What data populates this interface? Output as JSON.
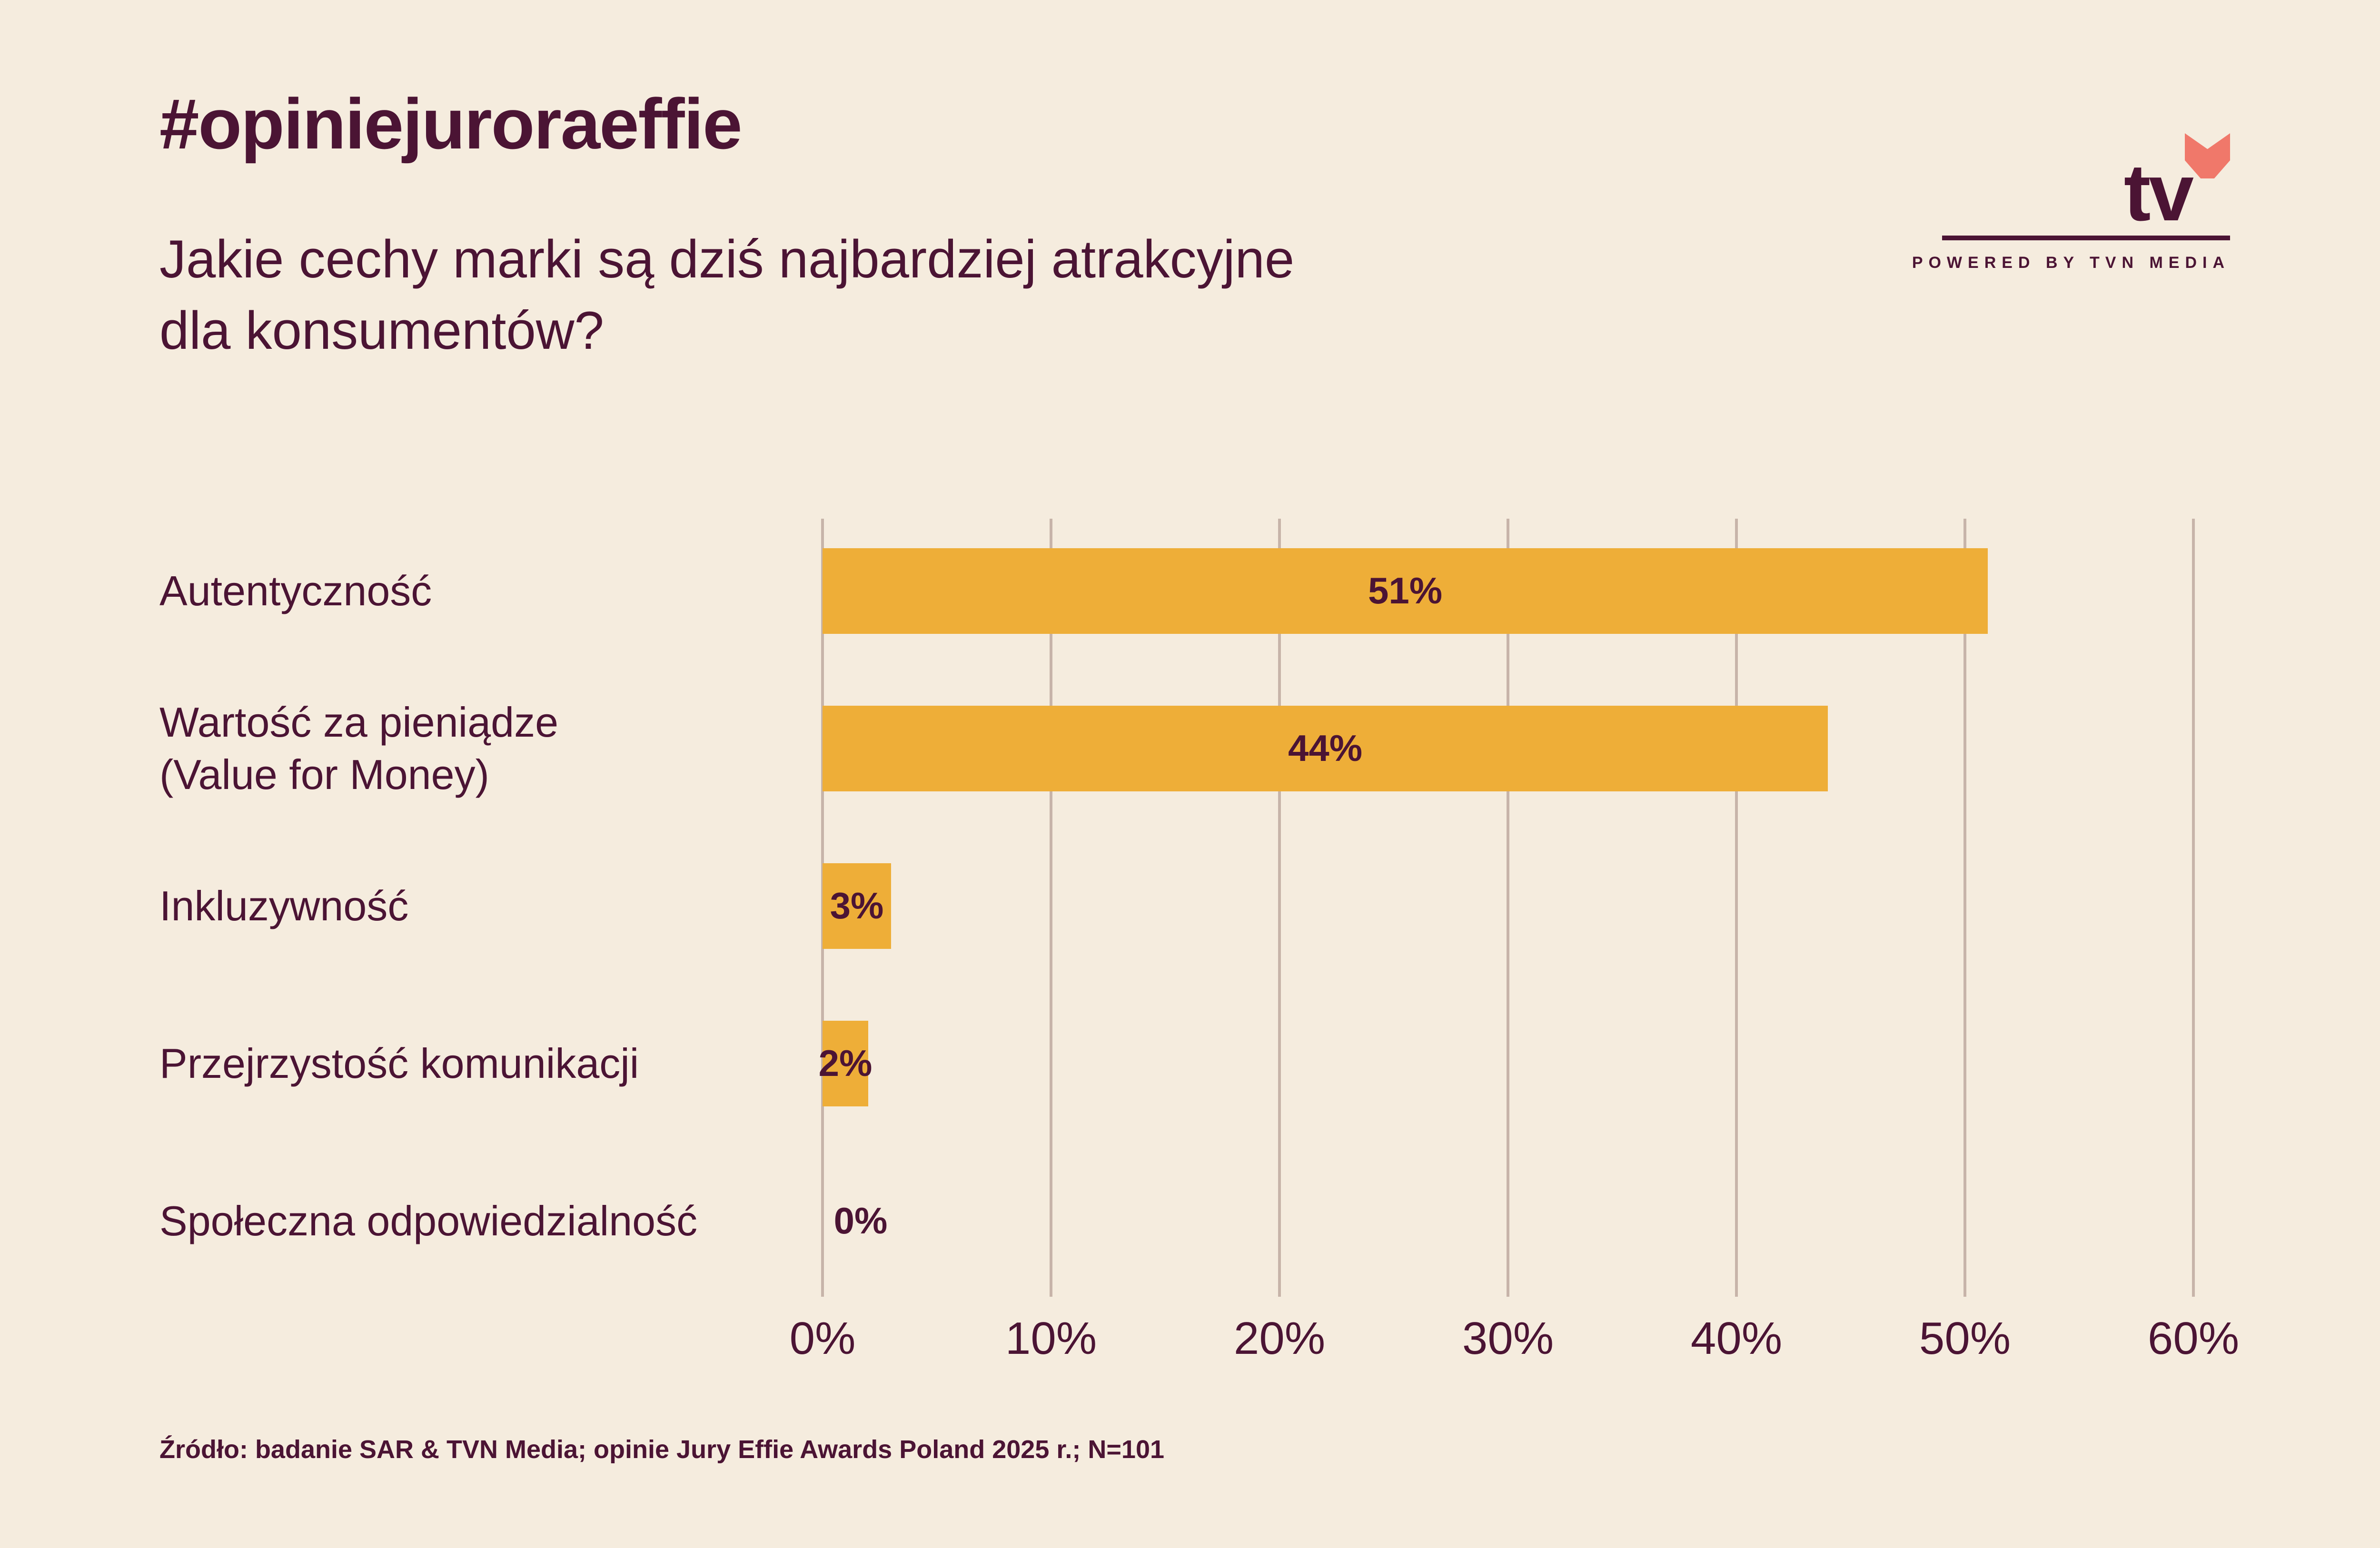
{
  "header": {
    "hashtag": "#opiniejuroraeffie",
    "question_line1": "Jakie cechy marki są dziś najbardziej atrakcyjne",
    "question_line2": "dla konsumentów?"
  },
  "logo": {
    "text": "tv",
    "tagline": "POWERED BY TVN MEDIA",
    "heart_color": "#F0786A",
    "icon": "heart-icon"
  },
  "chart_data": {
    "type": "bar",
    "orientation": "horizontal",
    "categories": [
      "Autentyczność",
      "Wartość za pieniądze\n(Value for Money)",
      "Inkluzywność",
      "Przejrzystość komunikacji",
      "Społeczna odpowiedzialność"
    ],
    "values": [
      51,
      44,
      3,
      2,
      0
    ],
    "data_labels": [
      "51%",
      "44%",
      "3%",
      "2%",
      "0%"
    ],
    "xlim": [
      0,
      60
    ],
    "xticks": [
      0,
      10,
      20,
      30,
      40,
      50,
      60
    ],
    "xtick_labels": [
      "0%",
      "10%",
      "20%",
      "30%",
      "40%",
      "50%",
      "60%"
    ],
    "grid": "vertical",
    "legend": "none",
    "bar_color": "#EEAE38",
    "grid_color": "#C7B4A9",
    "text_color": "#4B1434"
  },
  "footer": {
    "source": "Źródło: badanie SAR & TVN Media; opinie Jury Effie Awards Poland 2025 r.;  N=101"
  }
}
